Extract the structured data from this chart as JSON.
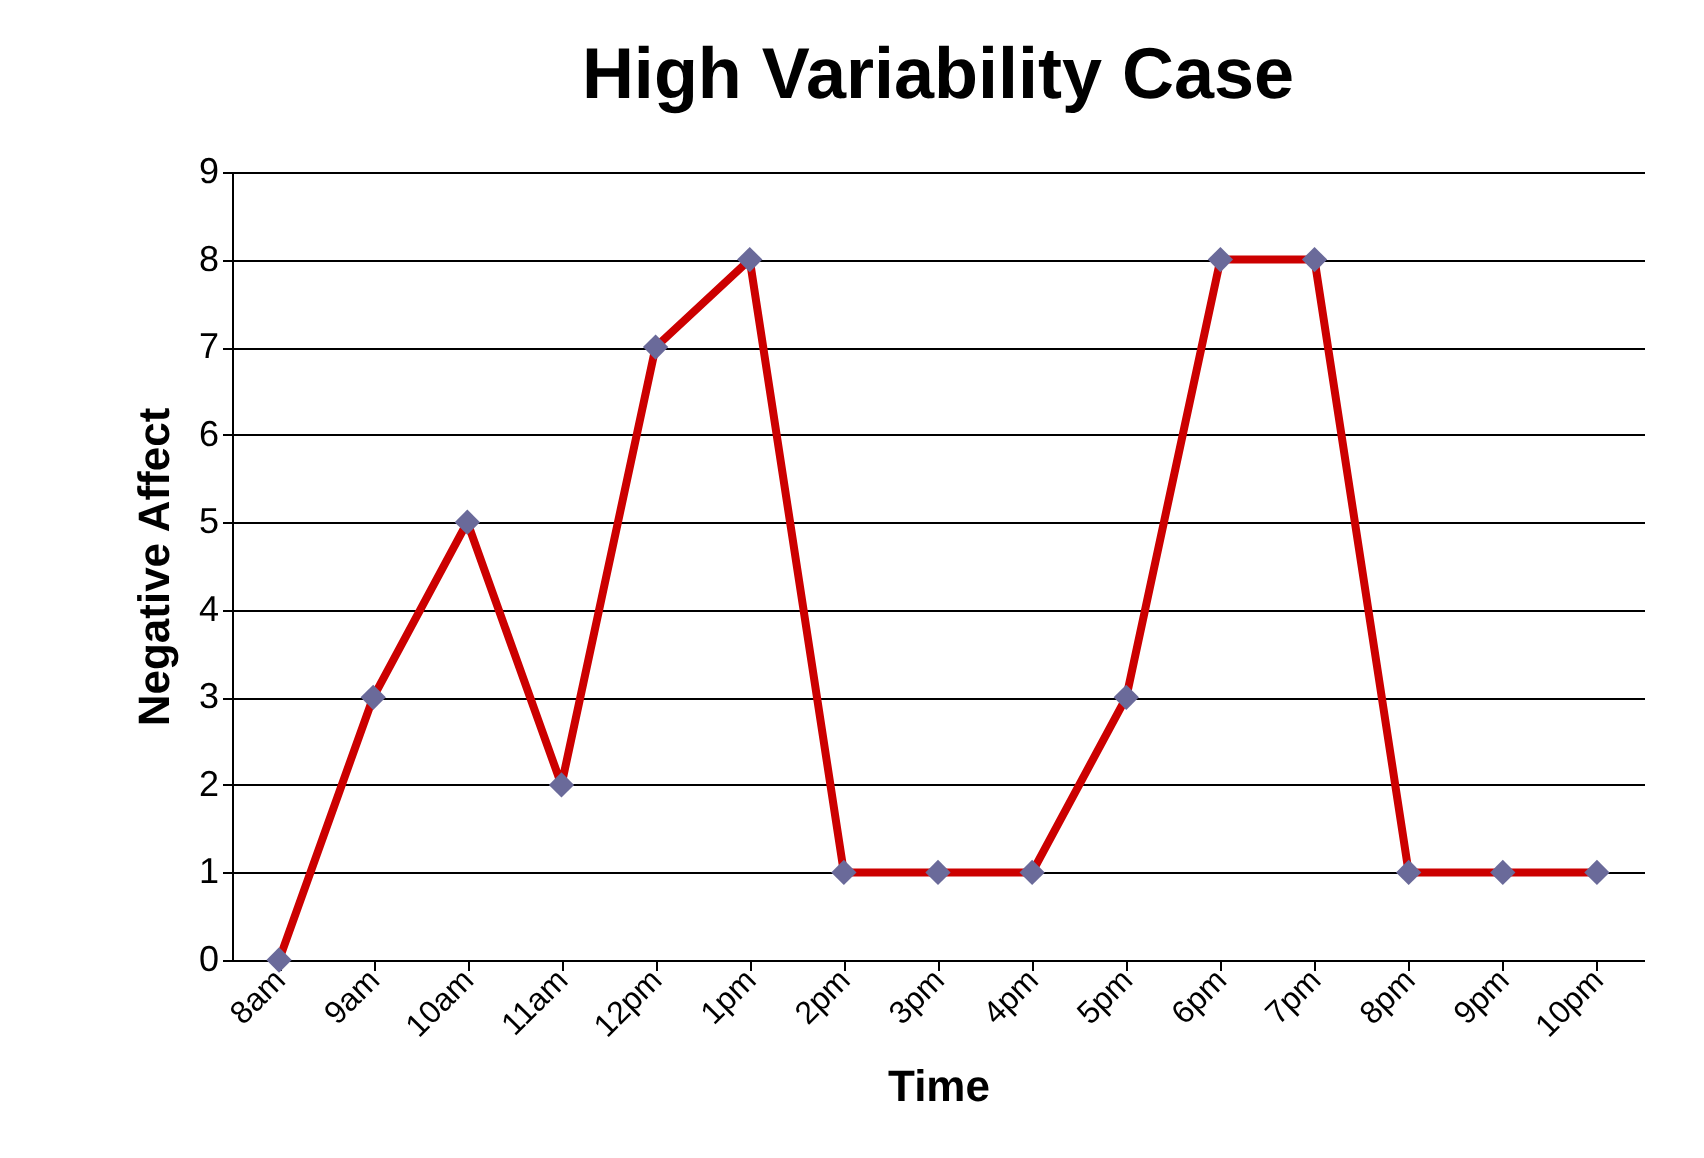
{
  "chart_data": {
    "type": "line",
    "title": "High Variability Case",
    "xlabel": "Time",
    "ylabel": "Negative Affect",
    "categories": [
      "8am",
      "9am",
      "10am",
      "11am",
      "12pm",
      "1pm",
      "2pm",
      "3pm",
      "4pm",
      "5pm",
      "6pm",
      "7pm",
      "8pm",
      "9pm",
      "10pm"
    ],
    "series": [
      {
        "color": "#cc0000",
        "values": [
          0,
          3,
          5,
          2,
          7,
          8,
          1,
          1,
          1,
          3,
          8,
          8,
          1,
          1,
          1
        ]
      }
    ],
    "ylim": [
      0,
      9
    ],
    "yticks": [
      0,
      1,
      2,
      3,
      4,
      5,
      6,
      7,
      8,
      9
    ],
    "grid": "y",
    "marker": "diamond",
    "line_style": "solid"
  }
}
